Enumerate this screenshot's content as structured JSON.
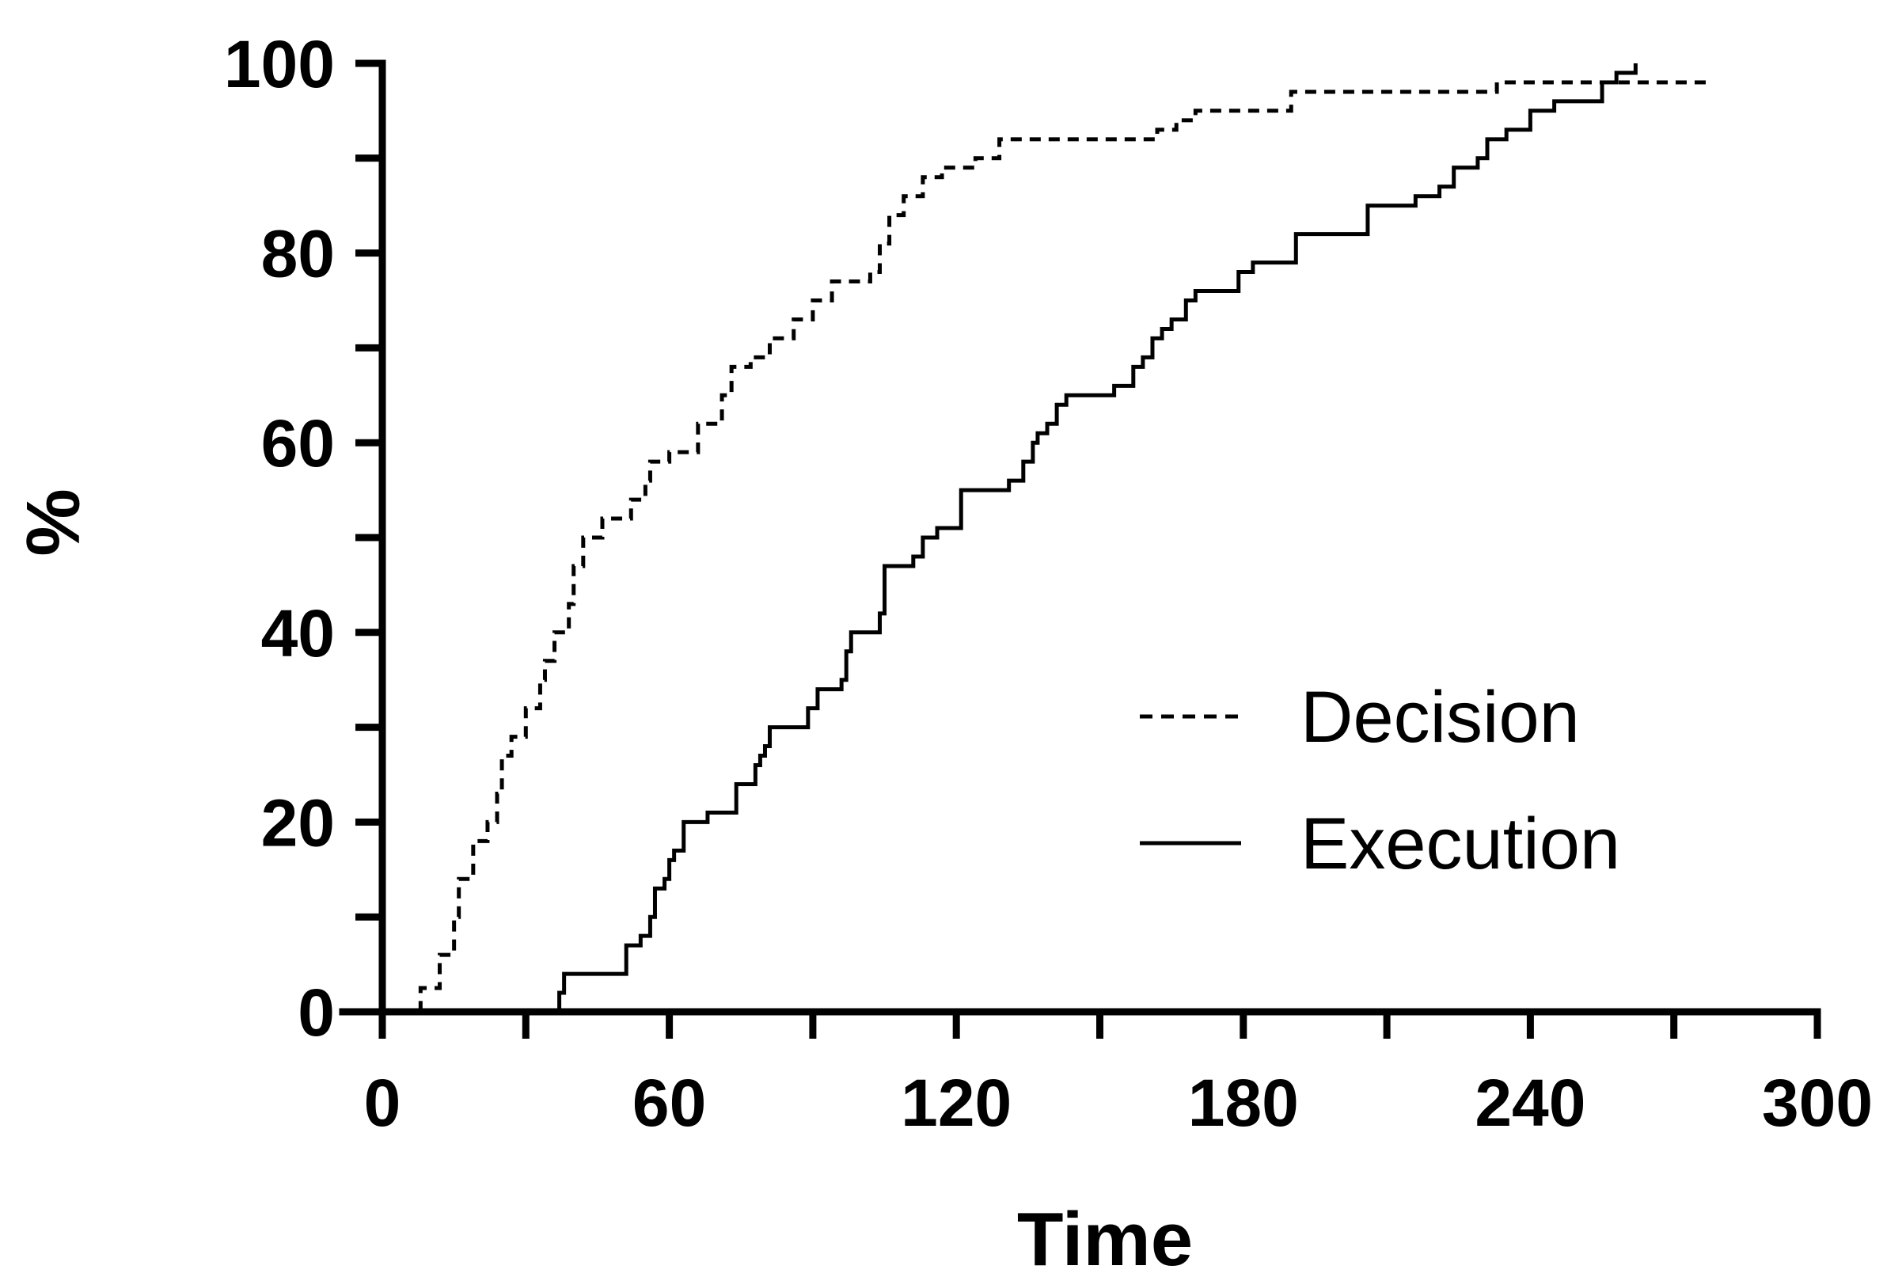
{
  "chart_data": {
    "type": "line",
    "title": "",
    "xlabel": "Time",
    "ylabel": "%",
    "xlim": [
      0,
      300
    ],
    "ylim": [
      0,
      100
    ],
    "x_ticks": [
      0,
      60,
      120,
      180,
      240,
      300
    ],
    "y_ticks": [
      0,
      20,
      40,
      60,
      80,
      100
    ],
    "grid": false,
    "legend_position": "right",
    "series": [
      {
        "name": "Decision",
        "style": "dashed",
        "color": "#000000",
        "steps": [
          [
            0,
            0
          ],
          [
            8,
            2.5
          ],
          [
            12,
            6
          ],
          [
            15,
            10
          ],
          [
            16,
            14
          ],
          [
            19,
            18
          ],
          [
            22,
            20
          ],
          [
            24,
            23
          ],
          [
            25,
            27
          ],
          [
            27,
            29
          ],
          [
            30,
            32
          ],
          [
            33,
            35
          ],
          [
            34,
            37
          ],
          [
            36,
            40
          ],
          [
            39,
            43
          ],
          [
            40,
            47
          ],
          [
            42,
            50
          ],
          [
            46,
            52
          ],
          [
            52,
            54
          ],
          [
            55,
            56
          ],
          [
            56,
            58
          ],
          [
            60,
            59
          ],
          [
            66,
            62
          ],
          [
            71,
            65
          ],
          [
            73,
            68
          ],
          [
            77,
            69
          ],
          [
            81,
            71
          ],
          [
            86,
            73
          ],
          [
            90,
            75
          ],
          [
            94,
            77
          ],
          [
            102,
            78
          ],
          [
            104,
            81
          ],
          [
            106,
            84
          ],
          [
            109,
            86
          ],
          [
            113,
            88
          ],
          [
            117,
            89
          ],
          [
            124,
            90
          ],
          [
            129,
            92
          ],
          [
            162,
            93
          ],
          [
            166,
            94
          ],
          [
            170,
            95
          ],
          [
            181,
            95
          ],
          [
            190,
            97
          ],
          [
            233,
            98
          ],
          [
            277,
            98
          ]
        ]
      },
      {
        "name": "Execution",
        "style": "solid",
        "color": "#000000",
        "steps": [
          [
            0,
            0
          ],
          [
            37,
            2
          ],
          [
            38,
            4
          ],
          [
            51,
            7
          ],
          [
            54,
            8
          ],
          [
            56,
            10
          ],
          [
            57,
            13
          ],
          [
            59,
            14
          ],
          [
            60,
            16
          ],
          [
            61,
            17
          ],
          [
            63,
            20
          ],
          [
            68,
            21
          ],
          [
            74,
            24
          ],
          [
            78,
            26
          ],
          [
            79,
            27
          ],
          [
            80,
            28
          ],
          [
            81,
            30
          ],
          [
            89,
            32
          ],
          [
            91,
            34
          ],
          [
            96,
            35
          ],
          [
            97,
            38
          ],
          [
            98,
            40
          ],
          [
            104,
            42
          ],
          [
            105,
            47
          ],
          [
            111,
            48
          ],
          [
            113,
            50
          ],
          [
            116,
            51
          ],
          [
            121,
            55
          ],
          [
            131,
            56
          ],
          [
            134,
            58
          ],
          [
            136,
            60
          ],
          [
            137,
            61
          ],
          [
            139,
            62
          ],
          [
            141,
            64
          ],
          [
            143,
            65
          ],
          [
            153,
            66
          ],
          [
            157,
            68
          ],
          [
            159,
            69
          ],
          [
            161,
            71
          ],
          [
            163,
            72
          ],
          [
            165,
            73
          ],
          [
            168,
            75
          ],
          [
            170,
            76
          ],
          [
            179,
            78
          ],
          [
            182,
            79
          ],
          [
            191,
            82
          ],
          [
            206,
            85
          ],
          [
            216,
            86
          ],
          [
            221,
            87
          ],
          [
            224,
            89
          ],
          [
            229,
            90
          ],
          [
            231,
            92
          ],
          [
            235,
            93
          ],
          [
            240,
            95
          ],
          [
            245,
            96
          ],
          [
            255,
            98
          ],
          [
            258,
            99
          ],
          [
            262,
            100
          ]
        ]
      }
    ]
  }
}
